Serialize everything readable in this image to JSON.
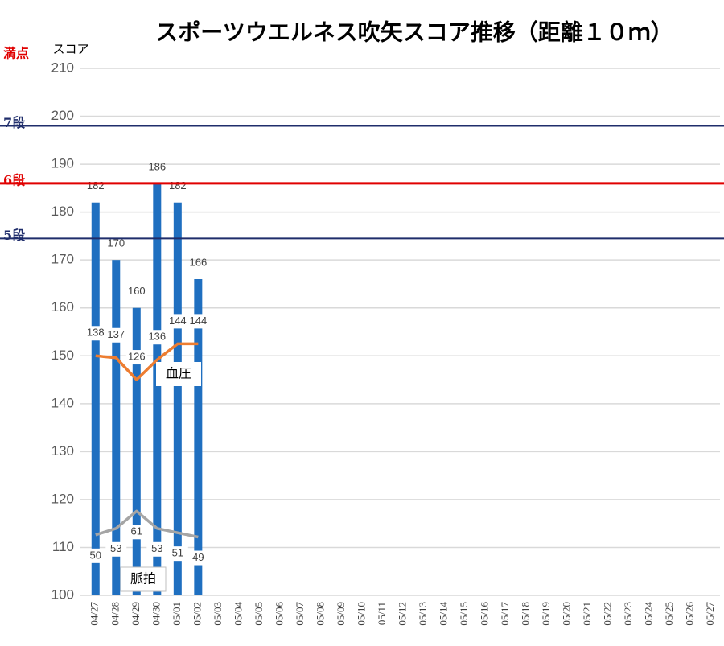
{
  "chart_data": {
    "type": "bar",
    "title": "スポーツウエルネス吹矢スコア推移（距離１０ｍ）",
    "y_label": "スコア",
    "categories": [
      "04/27",
      "04/28",
      "04/29",
      "04/30",
      "05/01",
      "05/02",
      "05/03",
      "05/04",
      "05/05",
      "05/06",
      "05/07",
      "05/08",
      "05/09",
      "05/10",
      "05/11",
      "05/12",
      "05/13",
      "05/14",
      "05/15",
      "05/16",
      "05/17",
      "05/18",
      "05/19",
      "05/20",
      "05/21",
      "05/22",
      "05/23",
      "05/24",
      "05/25",
      "05/26",
      "05/27"
    ],
    "values": [
      182,
      170,
      160,
      186,
      182,
      166,
      null,
      null,
      null,
      null,
      null,
      null,
      null,
      null,
      null,
      null,
      null,
      null,
      null,
      null,
      null,
      null,
      null,
      null,
      null,
      null,
      null,
      null,
      null,
      null,
      null
    ],
    "color": "#1f6fc0",
    "ylim": [
      100,
      210
    ],
    "yticks": [
      100,
      110,
      120,
      130,
      140,
      150,
      160,
      170,
      180,
      190,
      200,
      210
    ],
    "grid": true,
    "y2lim": [
      18,
      282
    ],
    "y3lim": [
      22,
      266
    ],
    "series": [
      {
        "name": "血圧",
        "color": "#ed7d31",
        "axis": "y2",
        "label_side": "above",
        "values": [
          138,
          137,
          126,
          136,
          144,
          144,
          null,
          null,
          null,
          null,
          null,
          null,
          null,
          null,
          null,
          null,
          null,
          null,
          null,
          null,
          null,
          null,
          null,
          null,
          null,
          null,
          null,
          null,
          null,
          null,
          null
        ]
      },
      {
        "name": "脈拍",
        "color": "#a5a5a5",
        "axis": "y3",
        "label_side": "below",
        "values": [
          50,
          53,
          61,
          53,
          51,
          49,
          null,
          null,
          null,
          null,
          null,
          null,
          null,
          null,
          null,
          null,
          null,
          null,
          null,
          null,
          null,
          null,
          null,
          null,
          null,
          null,
          null,
          null,
          null,
          null,
          null
        ]
      }
    ],
    "reference_lines": [
      {
        "value": 210,
        "label": "満点",
        "color": "#e00000",
        "line": false
      },
      {
        "value": 198,
        "label": "7段",
        "color": "#1f2d6b",
        "line": true
      },
      {
        "value": 186,
        "label": "6段",
        "color": "#e00000",
        "line": true
      },
      {
        "value": 174.5,
        "label": "5段",
        "color": "#1f2d6b",
        "line": true
      }
    ]
  }
}
